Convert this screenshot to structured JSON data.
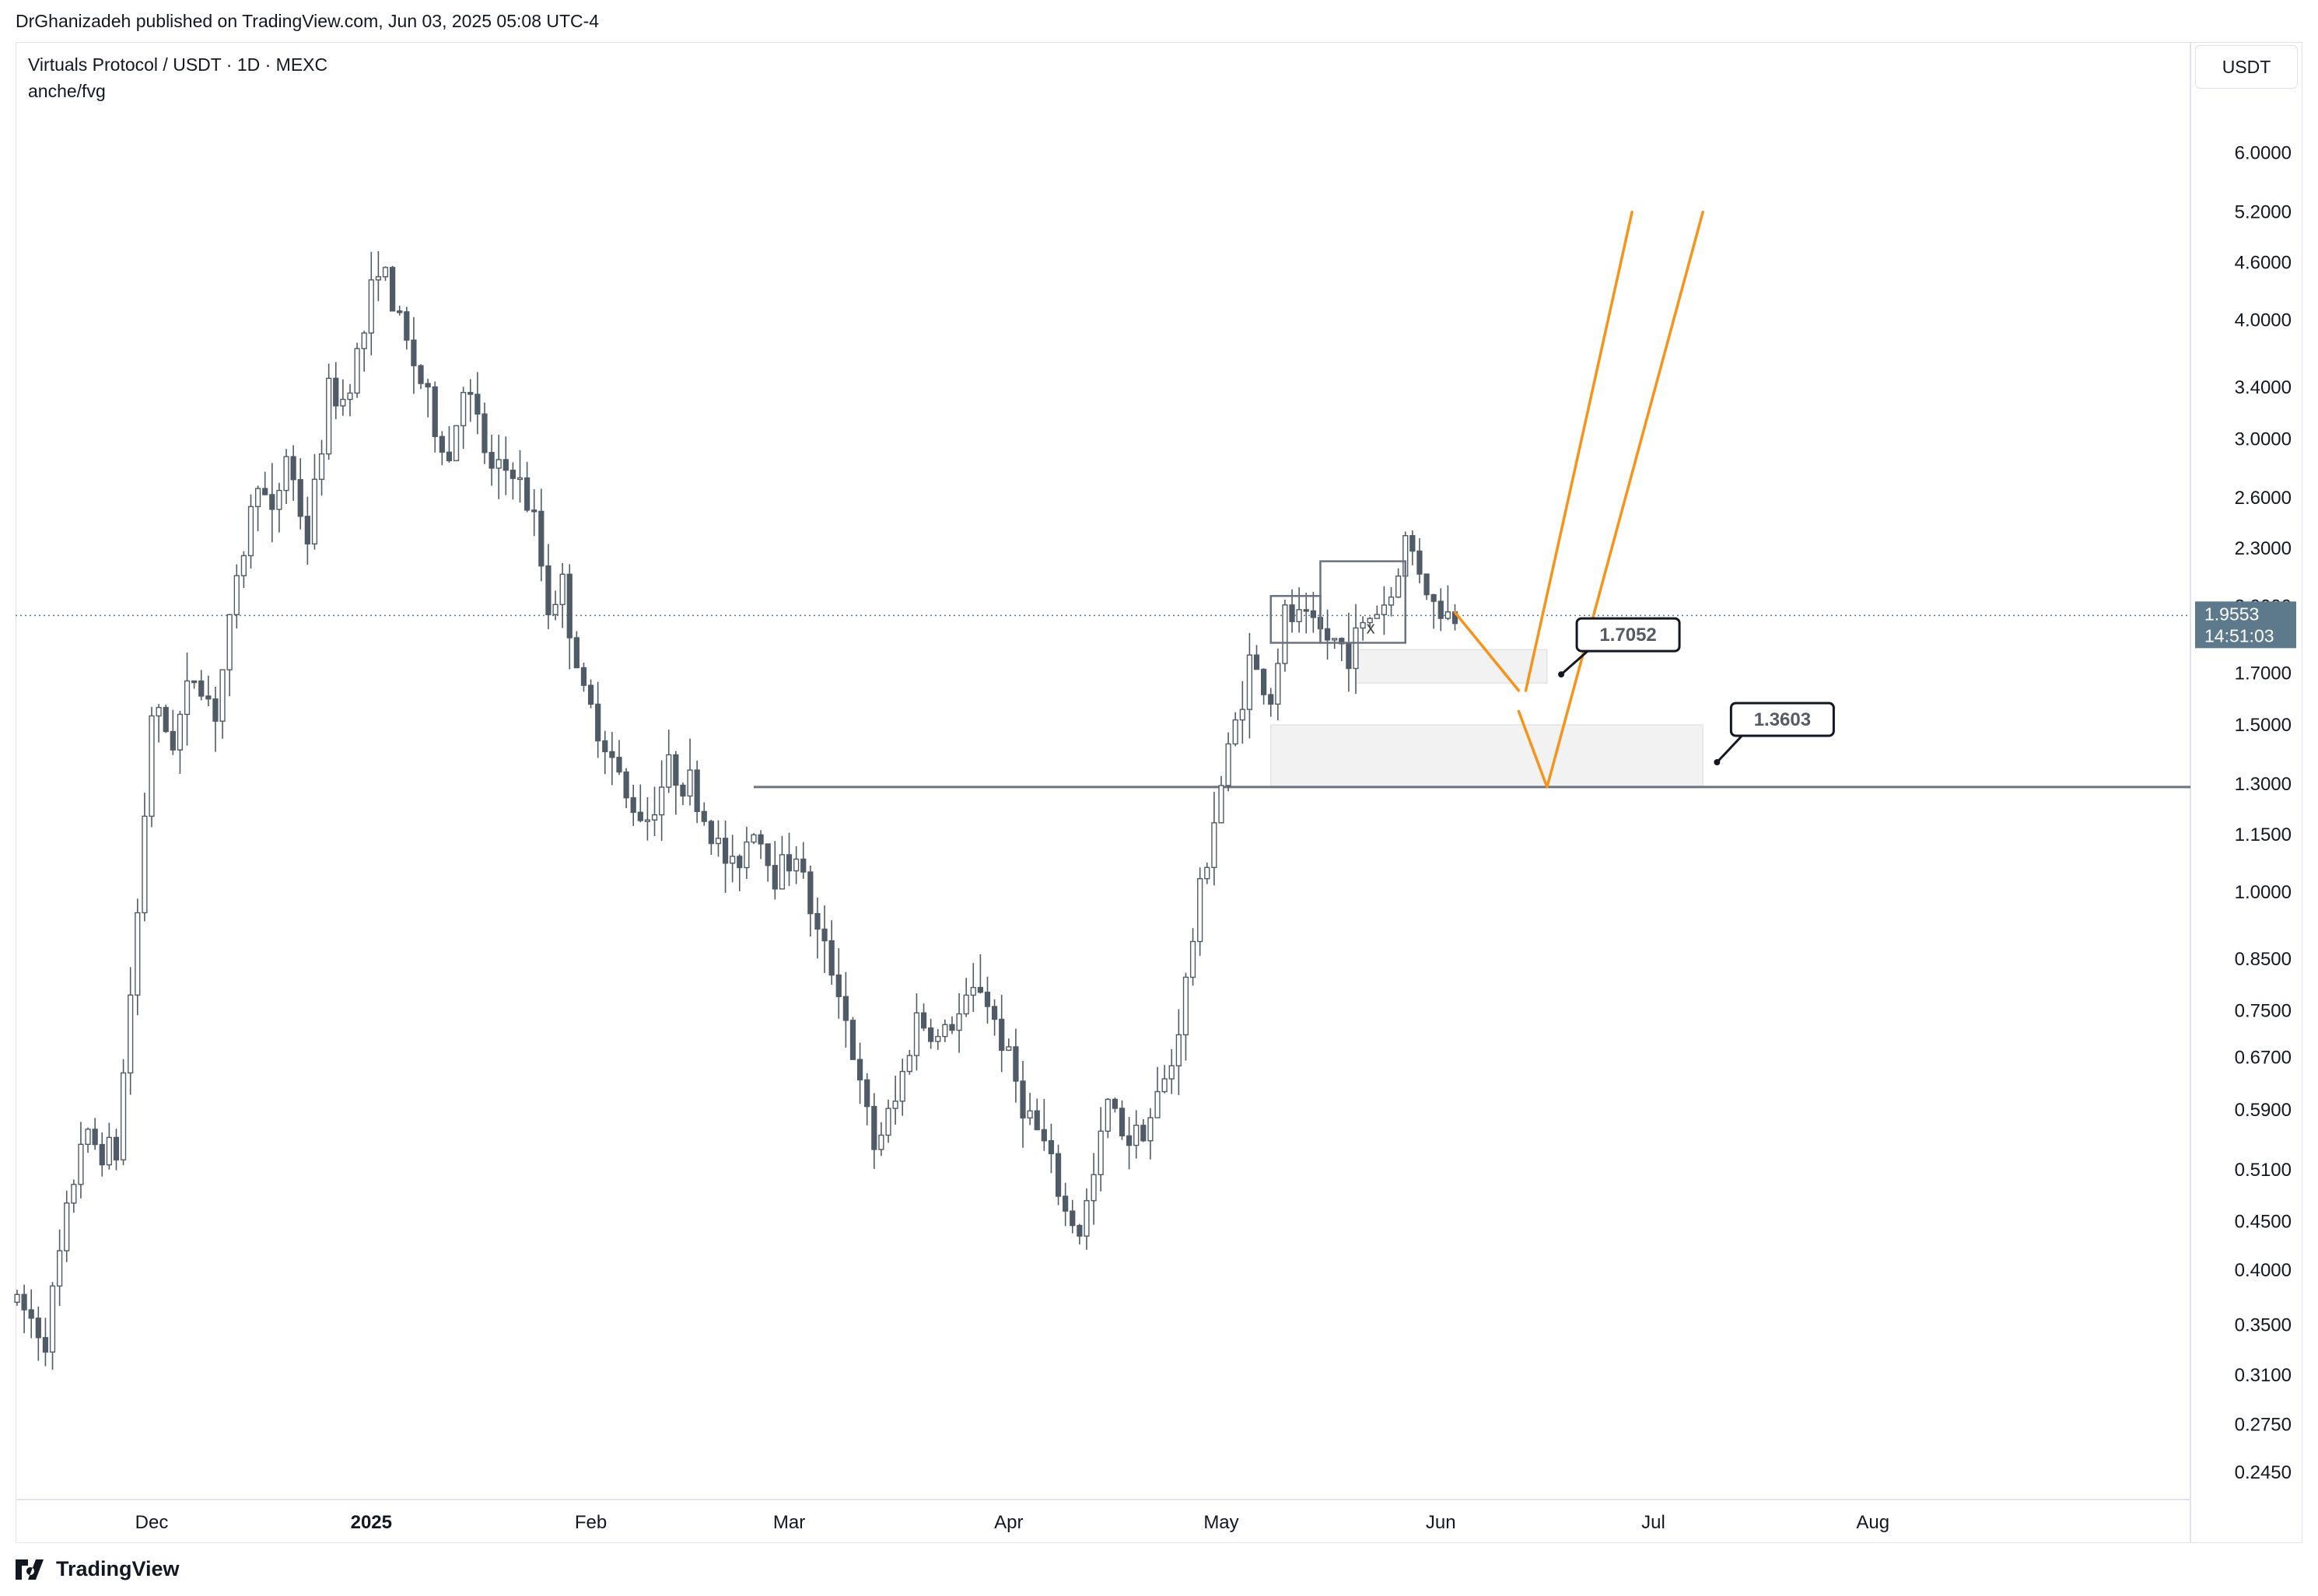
{
  "header": {
    "publisher_line": "DrGhanizadeh published on TradingView.com, Jun 03, 2025 05:08 UTC-4"
  },
  "legend": {
    "title": "Virtuals Protocol / USDT · 1D · MEXC",
    "subtitle": "anche/fvg"
  },
  "price_scale": {
    "currency": "USDT"
  },
  "last_price": {
    "value": "1.9553",
    "countdown": "14:51:03",
    "color": "#5d7a8c"
  },
  "annotations": {
    "callout_1": "1.7052",
    "callout_2": "1.3603",
    "marker_x": "x"
  },
  "footer": {
    "brand": "TradingView"
  },
  "colors": {
    "candle_body": "#4f5b66",
    "projection": "#f7931a",
    "zone_fill": "#f2f2f2",
    "support_line": "#6b7280",
    "bull_highlight": "#7ee2a8"
  },
  "chart_data": {
    "type": "candlestick",
    "scale": "log",
    "ylim": [
      0.235,
      7.2
    ],
    "y_ticks": [
      "6.0000",
      "5.2000",
      "4.6000",
      "4.0000",
      "3.4000",
      "3.0000",
      "2.6000",
      "2.3000",
      "2.0000",
      "1.7000",
      "1.5000",
      "1.3000",
      "1.1500",
      "1.0000",
      "0.8500",
      "0.7500",
      "0.6700",
      "0.5900",
      "0.5100",
      "0.4500",
      "0.4000",
      "0.3500",
      "0.3100",
      "0.2750",
      "0.2450"
    ],
    "x_ticks": [
      {
        "label": "Dec",
        "date": "2024-12-01",
        "bold": false
      },
      {
        "label": "2025",
        "date": "2025-01-01",
        "bold": true
      },
      {
        "label": "Feb",
        "date": "2025-02-01",
        "bold": false
      },
      {
        "label": "Mar",
        "date": "2025-03-01",
        "bold": false
      },
      {
        "label": "Apr",
        "date": "2025-04-01",
        "bold": false
      },
      {
        "label": "May",
        "date": "2025-05-01",
        "bold": false
      },
      {
        "label": "Jun",
        "date": "2025-06-01",
        "bold": false
      },
      {
        "label": "Jul",
        "date": "2025-07-01",
        "bold": false
      },
      {
        "label": "Aug",
        "date": "2025-08-01",
        "bold": false
      }
    ],
    "x_range": [
      "2024-11-12",
      "2025-09-01"
    ],
    "path_points": [
      [
        "2024-11-12",
        0.37
      ],
      [
        "2024-11-16",
        0.34
      ],
      [
        "2024-11-21",
        0.55
      ],
      [
        "2024-11-26",
        0.53
      ],
      [
        "2024-11-29",
        0.95
      ],
      [
        "2024-12-01",
        1.55
      ],
      [
        "2024-12-04",
        1.45
      ],
      [
        "2024-12-07",
        1.7
      ],
      [
        "2024-12-10",
        1.55
      ],
      [
        "2024-12-13",
        2.1
      ],
      [
        "2024-12-16",
        2.75
      ],
      [
        "2024-12-18",
        2.45
      ],
      [
        "2024-12-20",
        2.9
      ],
      [
        "2024-12-23",
        2.35
      ],
      [
        "2024-12-26",
        3.35
      ],
      [
        "2024-12-28",
        3.3
      ],
      [
        "2024-12-31",
        3.9
      ],
      [
        "2025-01-02",
        4.65
      ],
      [
        "2025-01-05",
        3.95
      ],
      [
        "2025-01-08",
        3.45
      ],
      [
        "2025-01-10",
        3.1
      ],
      [
        "2025-01-12",
        2.85
      ],
      [
        "2025-01-14",
        3.45
      ],
      [
        "2025-01-16",
        3.1
      ],
      [
        "2025-01-18",
        2.75
      ],
      [
        "2025-01-21",
        2.8
      ],
      [
        "2025-01-24",
        2.45
      ],
      [
        "2025-01-26",
        2.0
      ],
      [
        "2025-01-28",
        2.1
      ],
      [
        "2025-01-31",
        1.6
      ],
      [
        "2025-02-03",
        1.45
      ],
      [
        "2025-02-06",
        1.25
      ],
      [
        "2025-02-09",
        1.2
      ],
      [
        "2025-02-12",
        1.35
      ],
      [
        "2025-02-15",
        1.3
      ],
      [
        "2025-02-18",
        1.15
      ],
      [
        "2025-02-21",
        1.05
      ],
      [
        "2025-02-24",
        1.18
      ],
      [
        "2025-02-27",
        1.05
      ],
      [
        "2025-03-02",
        1.1
      ],
      [
        "2025-03-05",
        0.9
      ],
      [
        "2025-03-08",
        0.8
      ],
      [
        "2025-03-11",
        0.62
      ],
      [
        "2025-03-13",
        0.54
      ],
      [
        "2025-03-16",
        0.6
      ],
      [
        "2025-03-19",
        0.74
      ],
      [
        "2025-03-22",
        0.7
      ],
      [
        "2025-03-25",
        0.74
      ],
      [
        "2025-03-28",
        0.8
      ],
      [
        "2025-03-31",
        0.7
      ],
      [
        "2025-04-03",
        0.6
      ],
      [
        "2025-04-06",
        0.54
      ],
      [
        "2025-04-09",
        0.46
      ],
      [
        "2025-04-11",
        0.44
      ],
      [
        "2025-04-13",
        0.5
      ],
      [
        "2025-04-15",
        0.6
      ],
      [
        "2025-04-18",
        0.55
      ],
      [
        "2025-04-21",
        0.58
      ],
      [
        "2025-04-24",
        0.66
      ],
      [
        "2025-04-26",
        0.8
      ],
      [
        "2025-04-28",
        1.0
      ],
      [
        "2025-04-30",
        1.2
      ],
      [
        "2025-05-02",
        1.4
      ],
      [
        "2025-05-05",
        1.75
      ],
      [
        "2025-05-08",
        1.6
      ],
      [
        "2025-05-10",
        1.95
      ],
      [
        "2025-05-13",
        1.92
      ],
      [
        "2025-05-16",
        1.85
      ],
      [
        "2025-05-19",
        1.8
      ],
      [
        "2025-05-22",
        1.95
      ],
      [
        "2025-05-25",
        2.05
      ],
      [
        "2025-05-27",
        2.35
      ],
      [
        "2025-05-29",
        2.2
      ],
      [
        "2025-05-31",
        2.0
      ],
      [
        "2025-06-02",
        1.96
      ],
      [
        "2025-06-03",
        1.9553
      ]
    ],
    "projection": [
      [
        "2025-06-03",
        1.97
      ],
      [
        "2025-06-12",
        1.63
      ],
      [
        "2025-06-12",
        1.55
      ],
      [
        "2025-06-16",
        1.29
      ],
      [
        "2025-06-16",
        1.29
      ],
      [
        "2025-07-08",
        5.2
      ],
      [
        "2025-06-13",
        1.63
      ],
      [
        "2025-06-28",
        5.2
      ]
    ],
    "zones": [
      {
        "from": "2025-05-20",
        "to": "2025-06-16",
        "low": 1.66,
        "high": 1.8
      },
      {
        "from": "2025-05-08",
        "to": "2025-07-08",
        "low": 1.29,
        "high": 1.5
      }
    ],
    "support_level": {
      "price": 1.29,
      "from": "2025-02-24"
    },
    "range_box": {
      "from": "2025-05-08",
      "to": "2025-05-15",
      "low": 1.83,
      "high": 2.05
    },
    "range_box_2": {
      "from": "2025-05-15",
      "to": "2025-05-27",
      "low": 1.83,
      "high": 2.23
    }
  }
}
